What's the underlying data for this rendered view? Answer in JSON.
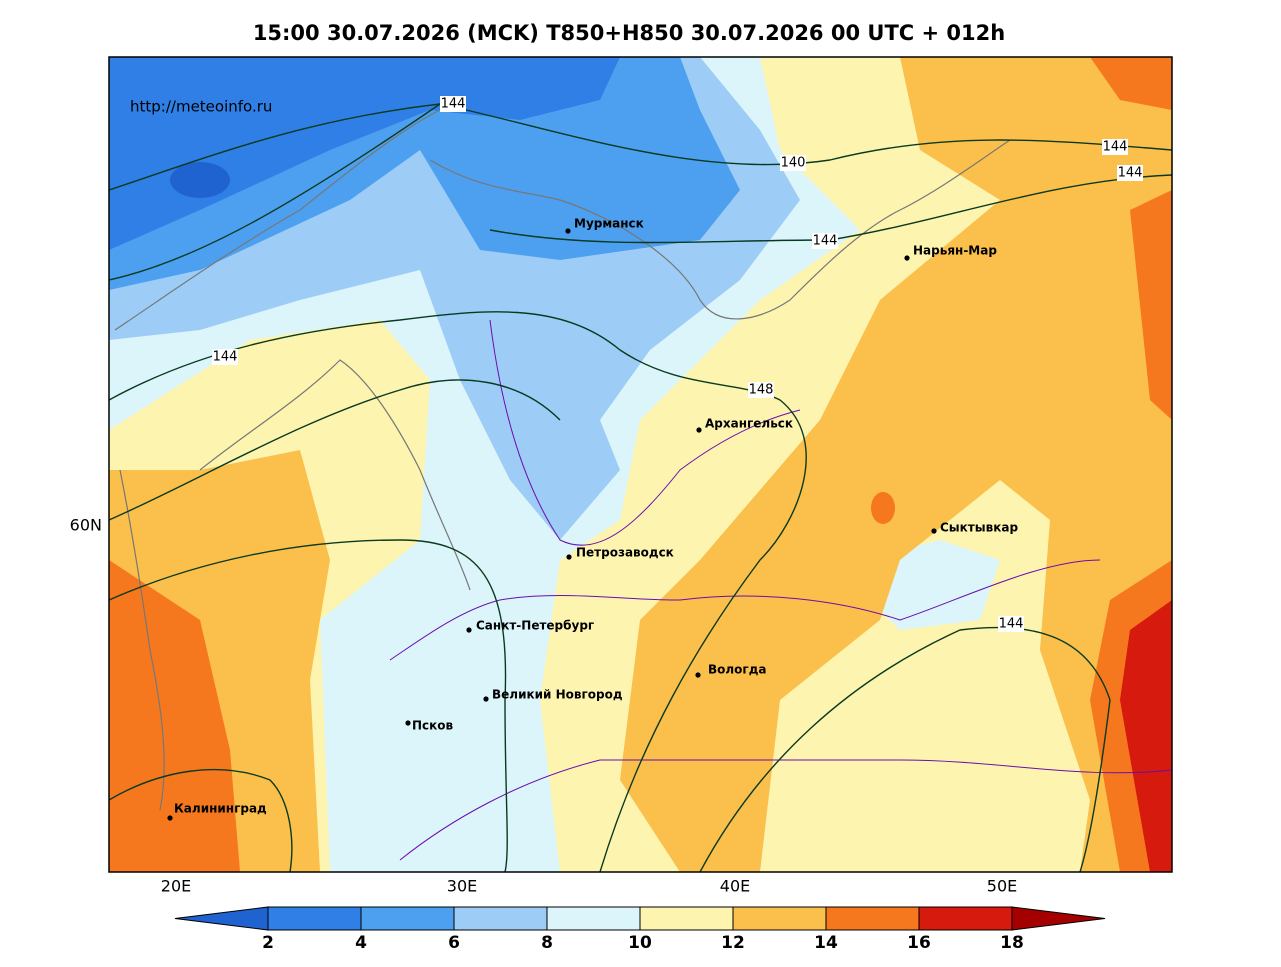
{
  "title": "15:00 30.07.2026 (MCK) T850+H850 30.07.2026 00 UTC + 012h",
  "watermark": "http://meteoinfo.ru",
  "cities": [
    "Мурманск",
    "Нарьян-Мар",
    "Архангельск",
    "Сыктывкар",
    "Петрозаводск",
    "Санкт-Петербург",
    "Вологда",
    "Великий Новгород",
    "Псков",
    "Калининград"
  ],
  "contour_labels": [
    "144",
    "140",
    "144",
    "144",
    "144",
    "144",
    "148",
    "144"
  ],
  "axes": {
    "x_labels": [
      "20E",
      "30E",
      "40E",
      "50E"
    ],
    "y_labels": [
      "60N"
    ]
  },
  "colorbar": {
    "ticks": [
      2,
      4,
      6,
      8,
      10,
      12,
      14,
      16,
      18
    ],
    "colors": [
      "#1f63d1",
      "#2f7fe6",
      "#4da0f0",
      "#9dcdf6",
      "#dcf5fb",
      "#fdf4b0",
      "#fbbf4b",
      "#f5781e",
      "#d61a0d",
      "#a50000"
    ]
  }
}
